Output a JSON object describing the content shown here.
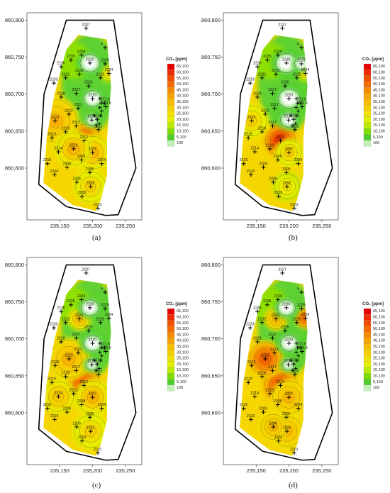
{
  "legend": {
    "title": "CO₂ [ppm]",
    "levels": [
      "65,100",
      "60,100",
      "55,100",
      "50,100",
      "45,100",
      "40,100",
      "35,100",
      "30,100",
      "25,100",
      "20,100",
      "15,100",
      "10,100",
      "5,100",
      "100"
    ],
    "colors": [
      "#e60000",
      "#ee2a00",
      "#f25000",
      "#f46c00",
      "#f58a00",
      "#f7a400",
      "#f8bd00",
      "#f5cf00",
      "#f0e100",
      "#e4ef00",
      "#b9ea00",
      "#7fdc00",
      "#4ccd2c",
      "#c2f0b8"
    ]
  },
  "axes": {
    "y_ticks": [
      "860,800",
      "860,750",
      "860,700",
      "860,650",
      "860,600"
    ],
    "x_ticks": [
      "235,150",
      "235,200",
      "235,250"
    ]
  },
  "panels": [
    {
      "label": "(a)",
      "hotspots": [
        {
          "id": "2212",
          "level": 0.95,
          "r": 26
        },
        {
          "id": "2223",
          "level": 0.6,
          "r": 34
        },
        {
          "id": "2207",
          "level": 0.55,
          "r": 26
        },
        {
          "id": "2202",
          "level": 0.45,
          "r": 24
        },
        {
          "id": "2213",
          "level": 0.55,
          "r": 26
        },
        {
          "id": "2224",
          "level": 0.35,
          "r": 12
        }
      ],
      "lows": [
        {
          "id": "2230",
          "r": 20
        },
        {
          "id": "2220",
          "r": 18
        },
        {
          "id": "2216",
          "r": 12
        }
      ]
    },
    {
      "label": "(b)",
      "hotspots": [
        {
          "id": "2212",
          "level": 1.0,
          "r": 24
        },
        {
          "id": "2223",
          "level": 0.45,
          "r": 24
        },
        {
          "id": "2207",
          "level": 0.45,
          "r": 20
        },
        {
          "id": "2202",
          "level": 0.35,
          "r": 20
        },
        {
          "id": "2224",
          "level": 0.4,
          "r": 10
        }
      ],
      "lows": [
        {
          "id": "2230",
          "r": 22
        },
        {
          "id": "2220",
          "r": 22
        },
        {
          "id": "2216",
          "r": 16
        },
        {
          "id": "2229",
          "r": 14
        }
      ]
    },
    {
      "label": "(c)",
      "hotspots": [
        {
          "id": "2212",
          "level": 0.95,
          "r": 26
        },
        {
          "id": "2222",
          "level": 0.6,
          "r": 30
        },
        {
          "id": "2231",
          "level": 0.55,
          "r": 16
        },
        {
          "id": "2207",
          "level": 0.55,
          "r": 26
        },
        {
          "id": "2202",
          "level": 0.45,
          "r": 26
        },
        {
          "id": "2214",
          "level": 0.5,
          "r": 24
        }
      ],
      "lows": [
        {
          "id": "2230",
          "r": 18
        },
        {
          "id": "2220",
          "r": 18
        },
        {
          "id": "2216",
          "r": 12
        }
      ]
    },
    {
      "label": "(d)",
      "hotspots": [
        {
          "id": "2212",
          "level": 0.95,
          "r": 26
        },
        {
          "id": "2222",
          "level": 0.85,
          "r": 26
        },
        {
          "id": "2231",
          "level": 0.6,
          "r": 16
        },
        {
          "id": "2224",
          "level": 0.85,
          "r": 14
        },
        {
          "id": "2207",
          "level": 0.6,
          "r": 26
        },
        {
          "id": "2202",
          "level": 0.6,
          "r": 24
        },
        {
          "id": "2206",
          "level": 0.6,
          "r": 20
        }
      ],
      "lows": [
        {
          "id": "2230",
          "r": 18
        },
        {
          "id": "2220",
          "r": 18
        },
        {
          "id": "2216",
          "r": 12
        }
      ]
    }
  ],
  "wells": [
    {
      "id": "2237",
      "x": 235190,
      "y": 860789
    },
    {
      "id": "6",
      "x": 235219,
      "y": 860763
    },
    {
      "id": "2234",
      "x": 235183,
      "y": 860753
    },
    {
      "id": "2235",
      "x": 235167,
      "y": 860746
    },
    {
      "id": "2236",
      "x": 235152,
      "y": 860737
    },
    {
      "id": "2230",
      "x": 235196,
      "y": 860742
    },
    {
      "id": "2229",
      "x": 235219,
      "y": 860741
    },
    {
      "id": "2224",
      "x": 235225,
      "y": 860728
    },
    {
      "id": "2232",
      "x": 235159,
      "y": 860722
    },
    {
      "id": "2231",
      "x": 235180,
      "y": 860727
    },
    {
      "id": "2225",
      "x": 235212,
      "y": 860722
    },
    {
      "id": "2233",
      "x": 235141,
      "y": 860715
    },
    {
      "id": "2226",
      "x": 235194,
      "y": 860711
    },
    {
      "id": "2227",
      "x": 235175,
      "y": 860701
    },
    {
      "id": "2228",
      "x": 235152,
      "y": 860696
    },
    {
      "id": "2220",
      "x": 235200,
      "y": 860694
    },
    {
      "id": "2221",
      "x": 235178,
      "y": 860681
    },
    {
      "id": "2222",
      "x": 235164,
      "y": 860673
    },
    {
      "id": "2223",
      "x": 235143,
      "y": 860664
    },
    {
      "id": "2216",
      "x": 235199,
      "y": 860665
    },
    {
      "id": "2217",
      "x": 235175,
      "y": 860657
    },
    {
      "id": "2218",
      "x": 235159,
      "y": 860649
    },
    {
      "id": "2219",
      "x": 235138,
      "y": 860641
    },
    {
      "id": "2212",
      "x": 235187,
      "y": 860637
    },
    {
      "id": "2213",
      "x": 235171,
      "y": 860626
    },
    {
      "id": "2214",
      "x": 235148,
      "y": 860622
    },
    {
      "id": "2211",
      "x": 235209,
      "y": 860652
    },
    {
      "id": "2207",
      "x": 235200,
      "y": 860621
    },
    {
      "id": "2208",
      "x": 235183,
      "y": 860611
    },
    {
      "id": "2209",
      "x": 235161,
      "y": 860601
    },
    {
      "id": "2215",
      "x": 235131,
      "y": 860606
    },
    {
      "id": "2210",
      "x": 235142,
      "y": 860591
    },
    {
      "id": "2204",
      "x": 235214,
      "y": 860606
    },
    {
      "id": "2205",
      "x": 235196,
      "y": 860594
    },
    {
      "id": "2206",
      "x": 235176,
      "y": 860581
    },
    {
      "id": "2202",
      "x": 235197,
      "y": 860575
    },
    {
      "id": "2203",
      "x": 235184,
      "y": 860562
    },
    {
      "id": "2201",
      "x": 235208,
      "y": 860546
    },
    {
      "id": "ST2_1",
      "x": 235207,
      "y": 860666
    },
    {
      "id": "ST1_6",
      "x": 235218,
      "y": 860688
    },
    {
      "id": "ST1_5",
      "x": 235220,
      "y": 860683
    }
  ],
  "cluster_east": [
    {
      "id": "c1",
      "x": 235211,
      "y": 860694
    },
    {
      "id": "c2",
      "x": 235213,
      "y": 860688
    },
    {
      "id": "c3",
      "x": 235211,
      "y": 860682
    },
    {
      "id": "c4",
      "x": 235214,
      "y": 860677
    },
    {
      "id": "c5",
      "x": 235212,
      "y": 860671
    },
    {
      "id": "c6",
      "x": 235210,
      "y": 860660
    },
    {
      "id": "c7",
      "x": 235206,
      "y": 860657
    },
    {
      "id": "c8",
      "x": 235203,
      "y": 860671
    }
  ],
  "boundary": [
    [
      235160,
      860800
    ],
    [
      235232,
      860800
    ],
    [
      235266,
      860600
    ],
    [
      235239,
      860537
    ],
    [
      235220,
      860536
    ],
    [
      235160,
      860548
    ],
    [
      235118,
      860578
    ],
    [
      235126,
      860700
    ]
  ],
  "field": [
    [
      235178,
      860780
    ],
    [
      235222,
      860774
    ],
    [
      235228,
      860710
    ],
    [
      235222,
      860640
    ],
    [
      235222,
      860590
    ],
    [
      235212,
      860556
    ],
    [
      235205,
      860542
    ],
    [
      235170,
      860550
    ],
    [
      235125,
      860580
    ],
    [
      235130,
      860640
    ],
    [
      235142,
      860700
    ],
    [
      235160,
      860760
    ]
  ]
}
